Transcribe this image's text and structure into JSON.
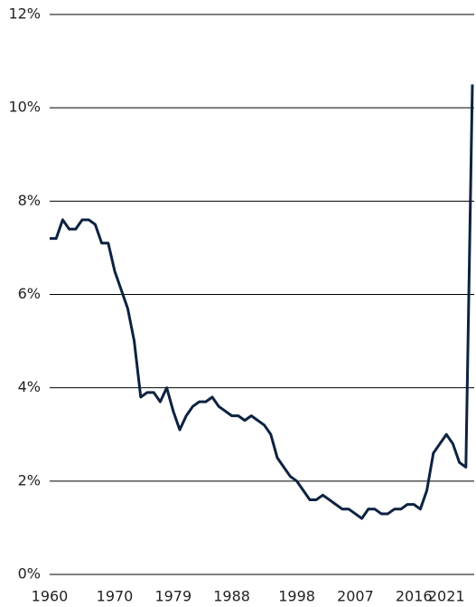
{
  "chart_data": {
    "type": "line",
    "x": [
      1960,
      1961,
      1962,
      1963,
      1964,
      1965,
      1966,
      1967,
      1968,
      1969,
      1970,
      1971,
      1972,
      1973,
      1974,
      1975,
      1976,
      1977,
      1978,
      1979,
      1980,
      1981,
      1982,
      1983,
      1984,
      1985,
      1986,
      1987,
      1988,
      1989,
      1990,
      1991,
      1992,
      1993,
      1994,
      1995,
      1996,
      1997,
      1998,
      1999,
      2000,
      2001,
      2002,
      2003,
      2004,
      2005,
      2006,
      2007,
      2008,
      2009,
      2010,
      2011,
      2012,
      2013,
      2014,
      2015,
      2016,
      2017,
      2018,
      2019,
      2020,
      2021,
      2022,
      2023,
      2024,
      2025
    ],
    "series": [
      {
        "color": "#0d2240",
        "values": [
          7.2,
          7.2,
          7.6,
          7.4,
          7.4,
          7.6,
          7.6,
          7.5,
          7.1,
          7.1,
          6.5,
          6.1,
          5.7,
          5.0,
          3.8,
          3.9,
          3.9,
          3.7,
          4.0,
          3.5,
          3.1,
          3.4,
          3.6,
          3.7,
          3.7,
          3.8,
          3.6,
          3.5,
          3.4,
          3.4,
          3.3,
          3.4,
          3.3,
          3.2,
          3.0,
          2.5,
          2.3,
          2.1,
          2.0,
          1.8,
          1.6,
          1.6,
          1.7,
          1.6,
          1.5,
          1.4,
          1.4,
          1.3,
          1.2,
          1.4,
          1.4,
          1.3,
          1.3,
          1.4,
          1.4,
          1.5,
          1.5,
          1.4,
          1.8,
          2.6,
          2.8,
          3.0,
          2.8,
          2.4,
          2.3,
          10.5
        ]
      }
    ],
    "xlim": [
      1960,
      2025
    ],
    "xticks": [
      1960,
      1970,
      1979,
      1988,
      1998,
      2007,
      2016,
      2021
    ],
    "ylim": [
      0,
      12
    ],
    "yticks": [
      {
        "value": 0,
        "label": "0%"
      },
      {
        "value": 2,
        "label": "2%"
      },
      {
        "value": 4,
        "label": "4%"
      },
      {
        "value": 6,
        "label": "6%"
      },
      {
        "value": 8,
        "label": "8%"
      },
      {
        "value": 10,
        "label": "10%"
      },
      {
        "value": 12,
        "label": "12%"
      }
    ],
    "grid": true
  }
}
